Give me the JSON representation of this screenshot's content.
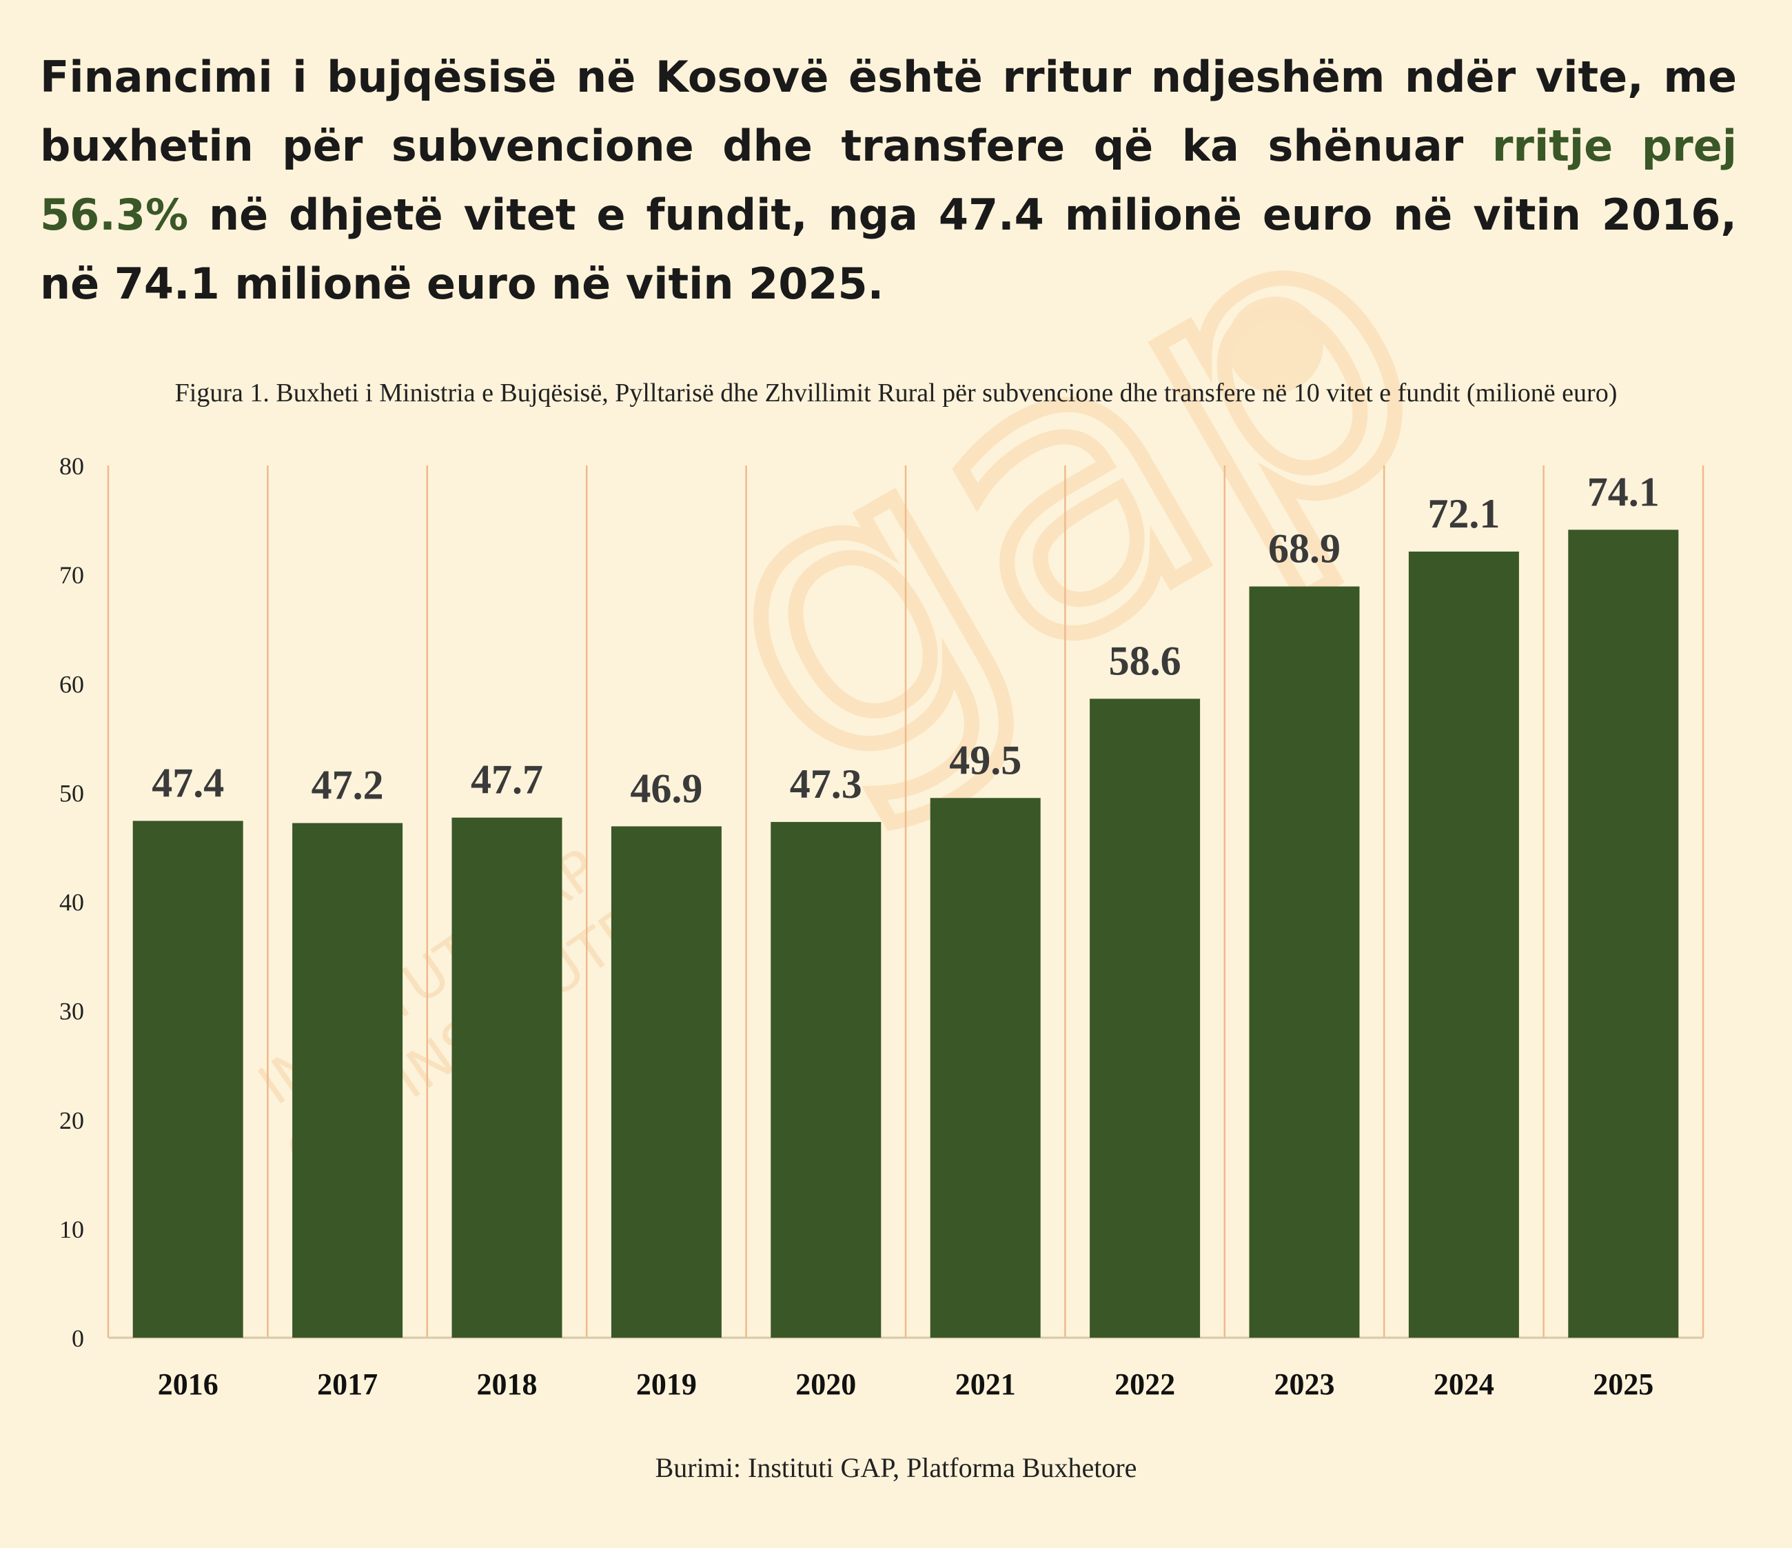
{
  "headline": {
    "part1": "Financimi i bujqësisë në Kosovë është rritur ndjeshëm ndër vite, me buxhetin për subvencione dhe transfere që ka shënuar ",
    "highlight": "rritje prej 56.3%",
    "part2": " në dhjetë vitet e fundit, nga 47.4 milionë euro në vitin 2016, në 74.1 milionë euro në vitin 2025."
  },
  "watermark": {
    "logo": "gap",
    "line1": "INSTITUTI GAP",
    "line2": "GAP INSTITUTE"
  },
  "colors": {
    "bar": "#3a5727",
    "gridline": "#f0b98c",
    "highlight": "#3a5727",
    "background": "#fdf3da"
  },
  "chart_data": {
    "type": "bar",
    "title": "Figura 1. Buxheti i Ministria e Bujqësisë, Pylltarisë dhe Zhvillimit Rural për subvencione dhe transfere në 10 vitet e fundit (milionë euro)",
    "categories": [
      "2016",
      "2017",
      "2018",
      "2019",
      "2020",
      "2021",
      "2022",
      "2023",
      "2024",
      "2025"
    ],
    "values": [
      47.4,
      47.2,
      47.7,
      46.9,
      47.3,
      49.5,
      58.6,
      68.9,
      72.1,
      74.1
    ],
    "data_labels": [
      "47.4",
      "47.2",
      "47.7",
      "46.9",
      "47.3",
      "49.5",
      "58.6",
      "68.9",
      "72.1",
      "74.1"
    ],
    "y_ticks": [
      "0",
      "10",
      "20",
      "30",
      "40",
      "50",
      "60",
      "70",
      "80"
    ],
    "ylim": [
      0,
      80
    ],
    "xlabel": "",
    "ylabel": "",
    "grid": "vertical",
    "legend": "none"
  },
  "source": "Burimi: Instituti GAP, Platforma Buxhetore"
}
